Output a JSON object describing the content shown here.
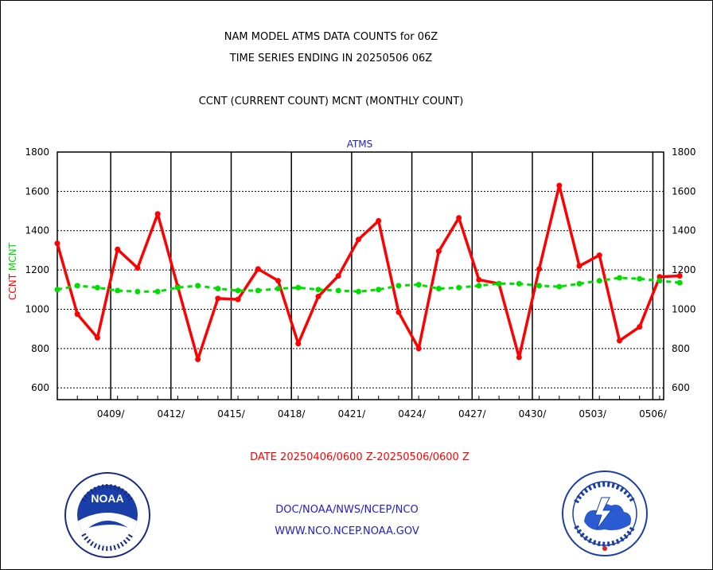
{
  "titles": {
    "line1": "NAM MODEL ATMS DATA COUNTS for 06Z",
    "line2": "TIME SERIES ENDING IN 20250506 06Z",
    "line3": "CCNT (CURRENT COUNT) MCNT (MONTHLY COUNT)"
  },
  "date_range": "DATE 20250406/0600 Z-20250506/0600 Z",
  "footer": {
    "line1": "DOC/NOAA/NWS/NCEP/NCO",
    "line2": "WWW.NCO.NCEP.NOAA.GOV"
  },
  "logos": {
    "left": "noaa-logo",
    "left_text": "NOAA",
    "right": "nws-logo"
  },
  "colors": {
    "ccnt": "#ff0000",
    "mcnt": "#00dd00",
    "title": "#000000",
    "footer": "#2020c8",
    "panel_label": "#2020c8"
  },
  "chart_data": {
    "type": "line",
    "title": "ATMS",
    "ylabel_parts": [
      {
        "text": "CCNT",
        "color": "#ff0000"
      },
      {
        "text": "MCNT",
        "color": "#00dd00"
      }
    ],
    "ylim": [
      540,
      1800
    ],
    "yticks": [
      600,
      800,
      1000,
      1200,
      1400,
      1600,
      1800
    ],
    "xlim": [
      0,
      30.2
    ],
    "xtick_positions": [
      2.66,
      5.66,
      8.66,
      11.66,
      14.66,
      17.66,
      20.66,
      23.66,
      26.66,
      29.66
    ],
    "xtick_labels": [
      "0409/",
      "0412/",
      "0415/",
      "0418/",
      "0421/",
      "0424/",
      "0427/",
      "0430/",
      "0503/",
      "0506/"
    ],
    "grid": true,
    "series": [
      {
        "name": "CCNT",
        "style": "solid",
        "values": [
          1335,
          975,
          855,
          1305,
          1210,
          1485,
          1115,
          745,
          1055,
          1050,
          1205,
          1145,
          825,
          1065,
          1170,
          1355,
          1450,
          985,
          800,
          1295,
          1465,
          1150,
          1130,
          755,
          1205,
          1630,
          1220,
          1275,
          840,
          910,
          1165,
          1170
        ]
      },
      {
        "name": "MCNT",
        "style": "dashed",
        "values": [
          1100,
          1120,
          1110,
          1095,
          1090,
          1090,
          1110,
          1120,
          1105,
          1095,
          1095,
          1105,
          1110,
          1100,
          1095,
          1090,
          1100,
          1120,
          1125,
          1105,
          1110,
          1120,
          1130,
          1130,
          1120,
          1115,
          1130,
          1145,
          1160,
          1155,
          1145,
          1135
        ]
      }
    ]
  }
}
